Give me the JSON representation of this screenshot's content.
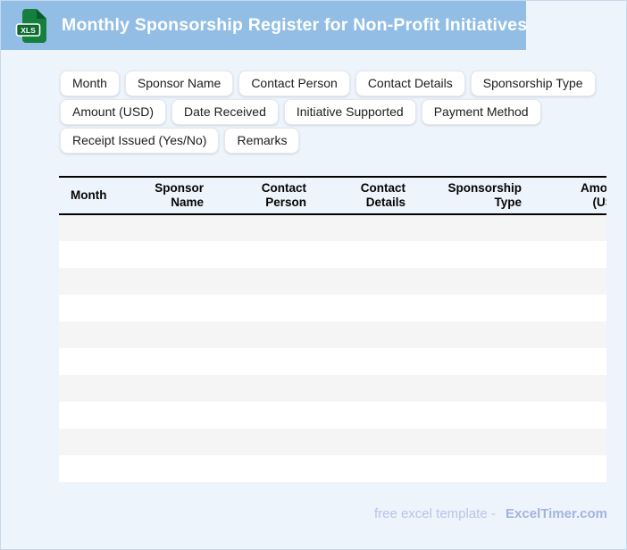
{
  "header": {
    "title": "Monthly Sponsorship Register for Non-Profit Initiatives",
    "icon_label": "XLS",
    "bg_color": "#92bee6"
  },
  "chips": {
    "rows": [
      [
        "Month",
        "Sponsor Name",
        "Contact Person",
        "Contact Details",
        "Sponsorship Type"
      ],
      [
        "Amount (USD)",
        "Date Received",
        "Initiative Supported",
        "Payment Method"
      ],
      [
        "Receipt Issued (Yes/No)",
        "Remarks"
      ]
    ]
  },
  "table": {
    "columns": [
      "Month",
      "Sponsor Name",
      "Contact Person",
      "Contact Details",
      "Sponsorship Type",
      "Amount (USD)"
    ],
    "empty_row_count": 10,
    "zebra_color": "#f5f5f6"
  },
  "footer": {
    "prefix": "free excel template -",
    "brand": "ExcelTimer.com",
    "prefix_color": "#b7c4e8",
    "brand_color": "#a2b4e0"
  },
  "colors": {
    "page_bg": "#eef4fb",
    "header_bg": "#92bee6",
    "icon_green": "#15803d",
    "icon_badge_green": "#0d6a33",
    "icon_fold_green": "#0a5c2c",
    "header_border": "#000000"
  }
}
